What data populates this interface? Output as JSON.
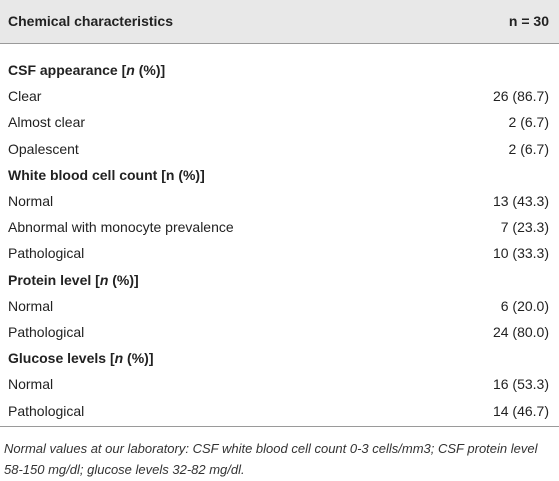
{
  "table": {
    "header": [
      "Chemical characteristics",
      "n = 30"
    ],
    "sections": [
      {
        "heading": [
          "CSF appearance [",
          "n",
          " (%)]"
        ],
        "rows": [
          [
            "Clear",
            "26 (86.7)"
          ],
          [
            "Almost clear",
            "2 (6.7)"
          ],
          [
            "Opalescent",
            "2 (6.7)"
          ]
        ]
      },
      {
        "heading": [
          "White blood cell count [n (%)]"
        ],
        "rows": [
          [
            "Normal",
            "13 (43.3)"
          ],
          [
            "Abnormal with monocyte prevalence",
            "7 (23.3)"
          ],
          [
            "Pathological",
            "10 (33.3)"
          ]
        ]
      },
      {
        "heading": [
          "Protein level [",
          "n",
          " (%)]"
        ],
        "rows": [
          [
            "Normal",
            "6 (20.0)"
          ],
          [
            "Pathological",
            "24 (80.0)"
          ]
        ]
      },
      {
        "heading": [
          "Glucose levels [",
          "n",
          " (%)]"
        ],
        "rows": [
          [
            "Normal",
            "16 (53.3)"
          ],
          [
            "Pathological",
            "14 (46.7)"
          ]
        ]
      }
    ],
    "footnote": "Normal values at our laboratory: CSF white blood cell count 0-3 cells/mm3; CSF protein level 58-150 mg/dl; glucose levels 32-82 mg/dl."
  }
}
